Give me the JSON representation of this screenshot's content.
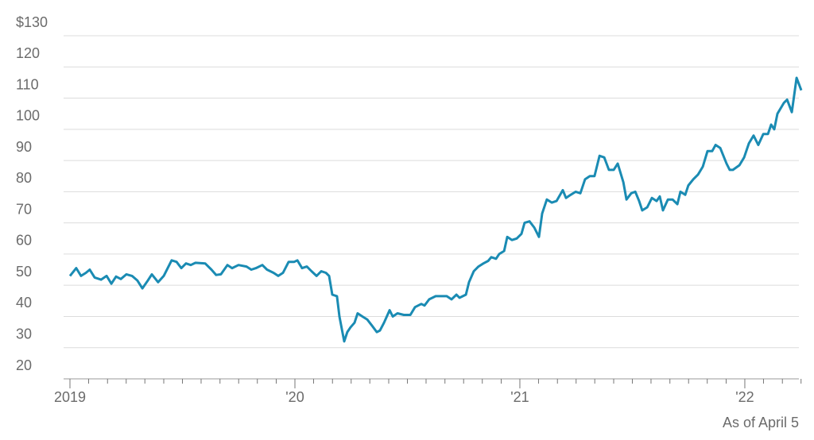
{
  "chart_data": {
    "type": "line",
    "annotation": "As of April 5",
    "color": "#1a8bb3",
    "grid": true,
    "xlim": [
      2019,
      2022.251
    ],
    "ylim": [
      20,
      130
    ],
    "yticks": [
      20,
      30,
      40,
      50,
      60,
      70,
      80,
      90,
      100,
      110,
      120,
      {
        "value": 130,
        "label": "$130"
      }
    ],
    "xticks": [
      {
        "value": 2019,
        "label": "2019"
      },
      {
        "value": 2020,
        "label": "'20"
      },
      {
        "value": 2021,
        "label": "'21"
      },
      {
        "value": 2022,
        "label": "'22"
      }
    ],
    "xminorticks": [
      2019.083,
      2019.167,
      2019.25,
      2019.333,
      2019.417,
      2019.5,
      2019.583,
      2019.667,
      2019.75,
      2019.833,
      2019.917,
      2020.083,
      2020.167,
      2020.25,
      2020.333,
      2020.417,
      2020.5,
      2020.583,
      2020.667,
      2020.75,
      2020.833,
      2020.917,
      2021.083,
      2021.167,
      2021.25,
      2021.333,
      2021.417,
      2021.5,
      2021.583,
      2021.667,
      2021.75,
      2021.833,
      2021.917,
      2022.083,
      2022.167,
      2022.25
    ],
    "x": [
      2019.0,
      2019.028,
      2019.049,
      2019.071,
      2019.088,
      2019.11,
      2019.138,
      2019.163,
      2019.184,
      2019.205,
      2019.226,
      2019.251,
      2019.276,
      2019.3,
      2019.322,
      2019.346,
      2019.364,
      2019.392,
      2019.417,
      2019.452,
      2019.474,
      2019.495,
      2019.516,
      2019.537,
      2019.558,
      2019.601,
      2019.629,
      2019.65,
      2019.671,
      2019.7,
      2019.721,
      2019.749,
      2019.785,
      2019.806,
      2019.827,
      2019.855,
      2019.876,
      2019.905,
      2019.926,
      2019.947,
      2019.972,
      2019.997,
      2020.011,
      2020.032,
      2020.053,
      2020.074,
      2020.096,
      2020.117,
      2020.138,
      2020.152,
      2020.166,
      2020.187,
      2020.198,
      2020.219,
      2020.233,
      2020.247,
      2020.265,
      2020.279,
      2020.3,
      2020.322,
      2020.343,
      2020.364,
      2020.378,
      2020.396,
      2020.421,
      2020.435,
      2020.456,
      2020.484,
      2020.513,
      2020.534,
      2020.562,
      2020.576,
      2020.597,
      2020.626,
      2020.654,
      2020.675,
      2020.696,
      2020.718,
      2020.732,
      2020.76,
      2020.774,
      2020.795,
      2020.816,
      2020.838,
      2020.859,
      2020.873,
      2020.894,
      2020.908,
      2020.93,
      2020.944,
      2020.965,
      2020.986,
      2021.007,
      2021.021,
      2021.043,
      2021.064,
      2021.085,
      2021.099,
      2021.12,
      2021.142,
      2021.163,
      2021.191,
      2021.205,
      2021.226,
      2021.248,
      2021.269,
      2021.29,
      2021.311,
      2021.332,
      2021.354,
      2021.375,
      2021.396,
      2021.417,
      2021.435,
      2021.46,
      2021.474,
      2021.495,
      2021.513,
      2021.53,
      2021.544,
      2021.566,
      2021.587,
      2021.608,
      2021.622,
      2021.636,
      2021.658,
      2021.679,
      2021.7,
      2021.714,
      2021.735,
      2021.749,
      2021.771,
      2021.792,
      2021.813,
      2021.834,
      2021.855,
      2021.87,
      2021.891,
      2021.919,
      2021.933,
      2021.947,
      2021.976,
      2021.997,
      2022.018,
      2022.039,
      2022.06,
      2022.082,
      2022.103,
      2022.117,
      2022.131,
      2022.145,
      2022.174,
      2022.188,
      2022.209,
      2022.23,
      2022.251
    ],
    "values": [
      53,
      55.5,
      53,
      54,
      55,
      52.5,
      51.8,
      53,
      50.5,
      52.8,
      52,
      53.5,
      53,
      51.5,
      49,
      51.5,
      53.5,
      51,
      53,
      58,
      57.5,
      55.5,
      57,
      56.5,
      57.2,
      57,
      55,
      53.3,
      53.5,
      56.5,
      55.5,
      56.5,
      56,
      55,
      55.5,
      56.5,
      55,
      54,
      53,
      54,
      57.5,
      57.5,
      58,
      55.5,
      56,
      54.5,
      53,
      54.5,
      54,
      53,
      47,
      46.5,
      40,
      32,
      35,
      36.5,
      38,
      41,
      40,
      39,
      37,
      35,
      35.5,
      38,
      42,
      40,
      41,
      40.5,
      40.5,
      43,
      44,
      43.5,
      45.5,
      46.5,
      46.5,
      46.5,
      45.5,
      47,
      46,
      47,
      51,
      54.5,
      56,
      57,
      57.8,
      59,
      58.5,
      60,
      61,
      65.5,
      64.5,
      65,
      66.5,
      70,
      70.5,
      68.5,
      65.5,
      73,
      77.5,
      76.5,
      77,
      80.5,
      78,
      79,
      80,
      79.5,
      84,
      85,
      85,
      91.5,
      91,
      87,
      87,
      89,
      83,
      77.5,
      79.5,
      80,
      77,
      74,
      75,
      78,
      77,
      78.5,
      74,
      77.5,
      77.5,
      76,
      80,
      79,
      82,
      84,
      85.5,
      88,
      93,
      93,
      95,
      94,
      89,
      87,
      87,
      88.5,
      91,
      95.5,
      98,
      95,
      98.5,
      98.5,
      101.5,
      100,
      105,
      108.5,
      109.5,
      105.5,
      116.5,
      112.5
    ]
  }
}
